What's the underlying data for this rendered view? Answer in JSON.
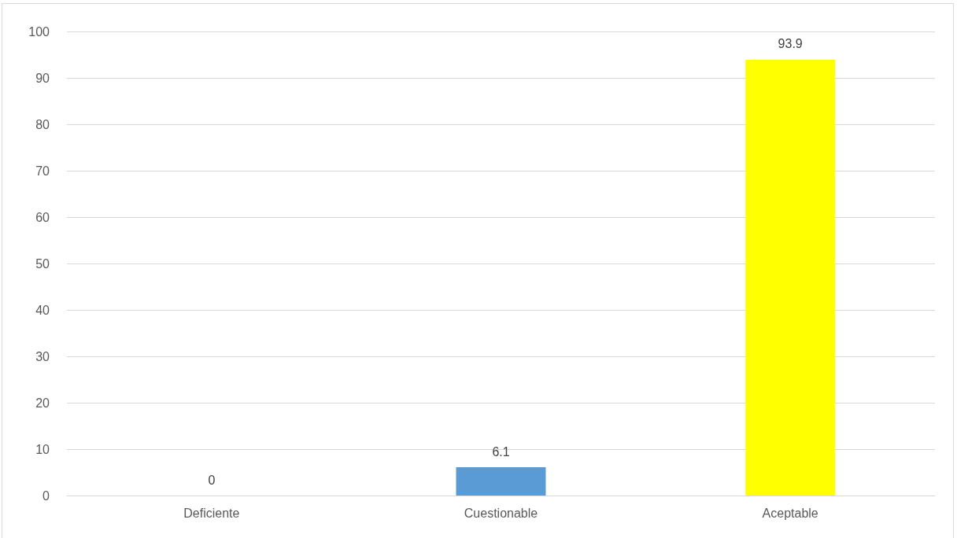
{
  "chart_data": {
    "type": "bar",
    "categories": [
      "Deficiente",
      "Cuestionable",
      "Aceptable"
    ],
    "values": [
      0,
      6.1,
      93.9
    ],
    "colors": [
      "#5b9bd5",
      "#5b9bd5",
      "#ffff00"
    ],
    "ylim": [
      0,
      100
    ],
    "yticks": [
      0,
      10,
      20,
      30,
      40,
      50,
      60,
      70,
      80,
      90,
      100
    ],
    "grid": "y",
    "data_labels": true
  }
}
